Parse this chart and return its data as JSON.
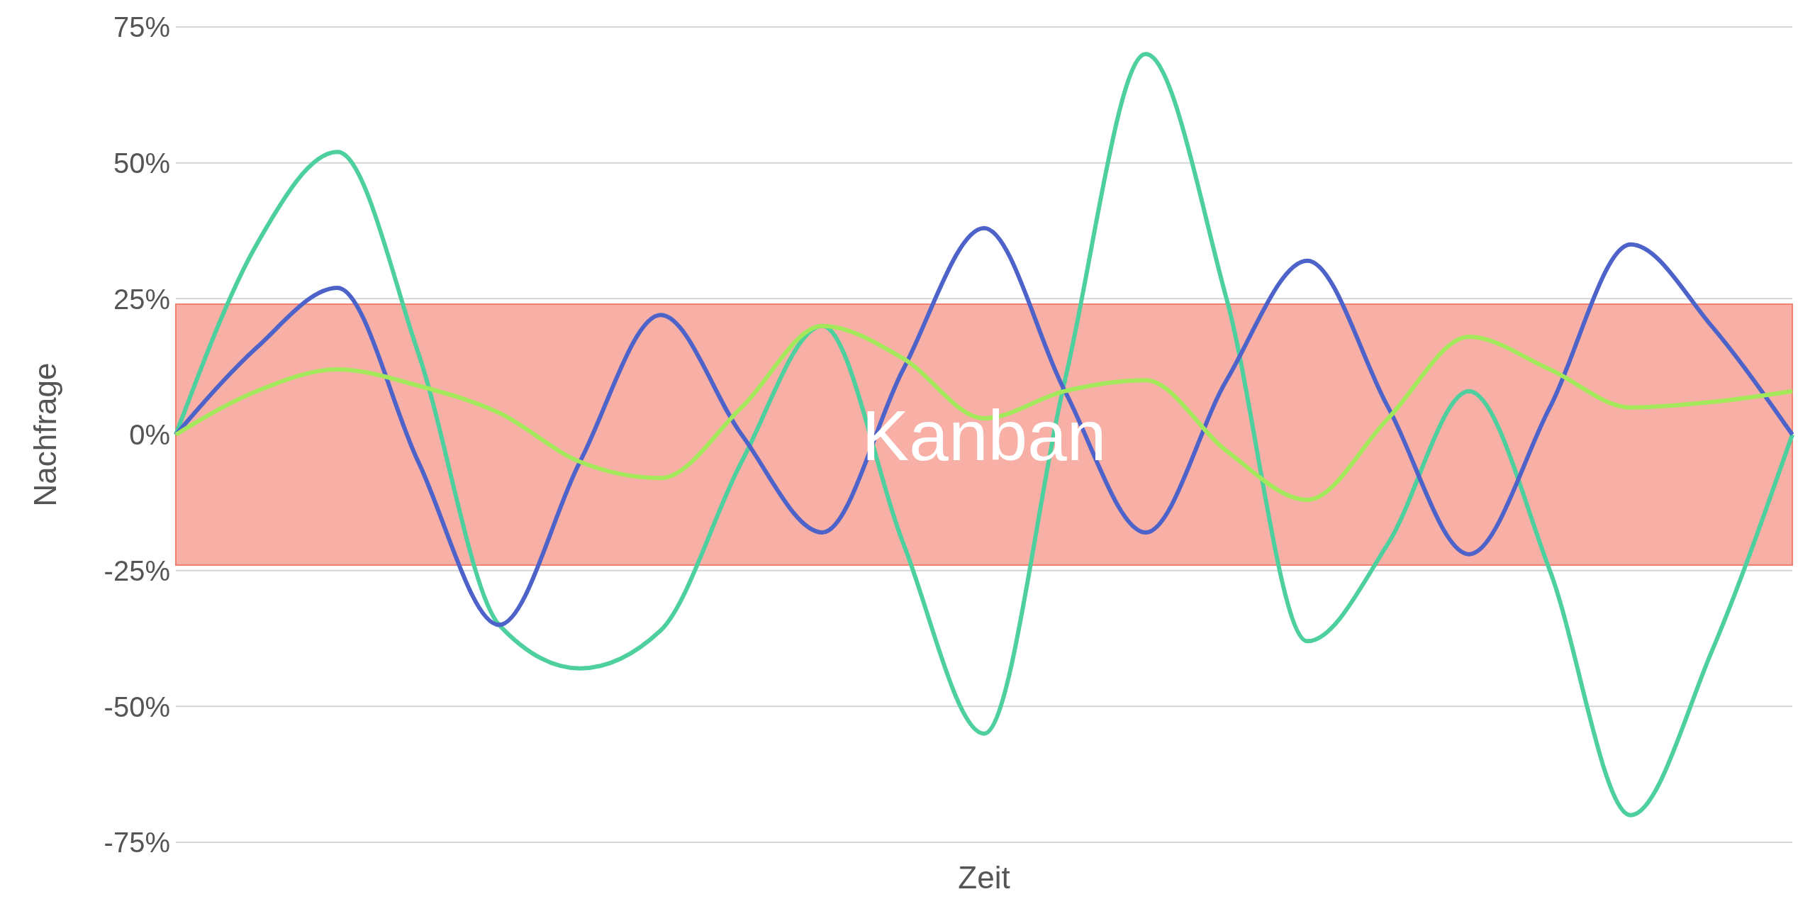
{
  "chart_data": {
    "type": "line",
    "xlabel": "Zeit",
    "ylabel": "Nachfrage",
    "categories": [
      null,
      null,
      null,
      null,
      null,
      null,
      null,
      null,
      null,
      null,
      null,
      null,
      null,
      null,
      null,
      null,
      null,
      null,
      null,
      null,
      null
    ],
    "series": [
      {
        "color": "#4ecf9e",
        "values": [
          0,
          35,
          52,
          15,
          -35,
          -43,
          -36,
          -5,
          20,
          -20,
          -55,
          10,
          70,
          25,
          -38,
          -20,
          8,
          -25,
          -70,
          -40,
          0
        ]
      },
      {
        "color": "#4e63c9",
        "values": [
          0,
          16,
          27,
          -5,
          -35,
          -5,
          22,
          0,
          -18,
          12,
          38,
          8,
          -18,
          10,
          32,
          5,
          -22,
          5,
          35,
          20,
          0
        ]
      },
      {
        "color": "#a3e85a",
        "values": [
          0,
          8,
          12,
          9,
          4,
          -5,
          -8,
          5,
          20,
          14,
          3,
          8,
          10,
          -3,
          -12,
          3,
          18,
          12,
          5,
          6,
          8
        ]
      }
    ],
    "ylim": [
      -75,
      75
    ],
    "yticks": [
      {
        "value": -75,
        "label": "-75%"
      },
      {
        "value": -50,
        "label": "-50%"
      },
      {
        "value": -25,
        "label": "-25%"
      },
      {
        "value": 0,
        "label": "0%"
      },
      {
        "value": 25,
        "label": "25%"
      },
      {
        "value": 50,
        "label": "50%"
      },
      {
        "value": 75,
        "label": "75%"
      }
    ],
    "bands": [
      {
        "axis": "y",
        "from": -24,
        "to": 24,
        "label": "Kanban",
        "color": "#f8b0a6"
      }
    ],
    "grid": "y",
    "legend": false,
    "marker": "none",
    "line_style": "solid"
  }
}
